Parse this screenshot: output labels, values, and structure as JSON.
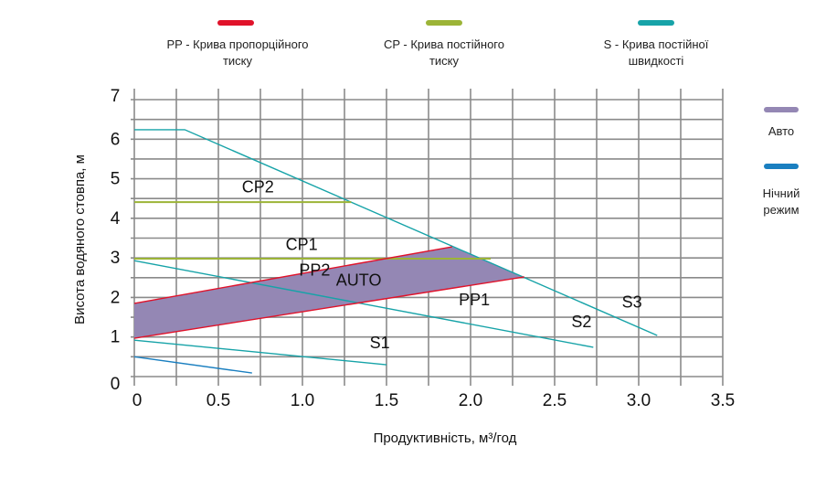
{
  "legend_top": [
    {
      "label": "PP -  Крива пропорційного тиску",
      "line1": "PP -  Крива пропорційного",
      "line2": "тиску",
      "color": "#e0122a"
    },
    {
      "label": "CP - Крива постійного тиску",
      "line1": "CP - Крива постійного",
      "line2": "тиску",
      "color": "#9cb437"
    },
    {
      "label": "S - Крива постійної швидкості",
      "line1": "S - Крива постійної",
      "line2": "швидкості",
      "color": "#17a3a8"
    }
  ],
  "legend_right": [
    {
      "line1": "Авто",
      "line2": "",
      "color": "#9487b4"
    },
    {
      "line1": "Нічний",
      "line2": "режим",
      "color": "#1a7fc0"
    }
  ],
  "chart_data": {
    "type": "line",
    "xlabel": "Продуктивність, м³/год",
    "ylabel": "Висота водяного стовпа, м",
    "xlim": [
      0,
      3.5
    ],
    "ylim": [
      0,
      7
    ],
    "xticks": [
      "0",
      "0.5",
      "1.0",
      "1.5",
      "2.0",
      "2.5",
      "3.0",
      "3.5"
    ],
    "yticks": [
      "0",
      "1",
      "2",
      "3",
      "4",
      "5",
      "6",
      "7"
    ],
    "grid": true,
    "series": [
      {
        "name": "S3",
        "color": "#17a3a8",
        "x": [
          0,
          0.3,
          3.11
        ],
        "y": [
          6.24,
          6.24,
          1.04
        ]
      },
      {
        "name": "S2",
        "color": "#17a3a8",
        "x": [
          0,
          2.73
        ],
        "y": [
          2.93,
          0.74
        ]
      },
      {
        "name": "S1",
        "color": "#17a3a8",
        "x": [
          0,
          1.5
        ],
        "y": [
          0.92,
          0.3
        ]
      },
      {
        "name": "CP2",
        "color": "#9cb437",
        "x": [
          0,
          1.29
        ],
        "y": [
          4.41,
          4.41
        ]
      },
      {
        "name": "CP1",
        "color": "#9cb437",
        "x": [
          0,
          2.12
        ],
        "y": [
          2.98,
          2.98
        ]
      },
      {
        "name": "PP2",
        "color": "#e0122a",
        "x": [
          0,
          1.89
        ],
        "y": [
          1.85,
          3.28
        ]
      },
      {
        "name": "PP1",
        "color": "#e0122a",
        "x": [
          0,
          2.32
        ],
        "y": [
          0.97,
          2.52
        ]
      },
      {
        "name": "Нічний режим",
        "color": "#1a7fc0",
        "x": [
          0,
          0.7
        ],
        "y": [
          0.5,
          0.09
        ]
      }
    ],
    "area": {
      "name": "AUTO",
      "color": "#9487b4",
      "x": [
        0,
        1.89,
        2.32,
        0
      ],
      "y": [
        1.85,
        3.28,
        2.52,
        0.97
      ]
    },
    "annotations": [
      {
        "text": "CP2",
        "x": 0.64,
        "y": 4.65
      },
      {
        "text": "CP1",
        "x": 0.9,
        "y": 3.2
      },
      {
        "text": "PP2",
        "x": 0.98,
        "y": 2.55
      },
      {
        "text": "AUTO",
        "x": 1.2,
        "y": 2.3
      },
      {
        "text": "PP1",
        "x": 1.93,
        "y": 1.8
      },
      {
        "text": "S1",
        "x": 1.4,
        "y": 0.72
      },
      {
        "text": "S2",
        "x": 2.6,
        "y": 1.25
      },
      {
        "text": "S3",
        "x": 2.9,
        "y": 1.75
      }
    ]
  }
}
